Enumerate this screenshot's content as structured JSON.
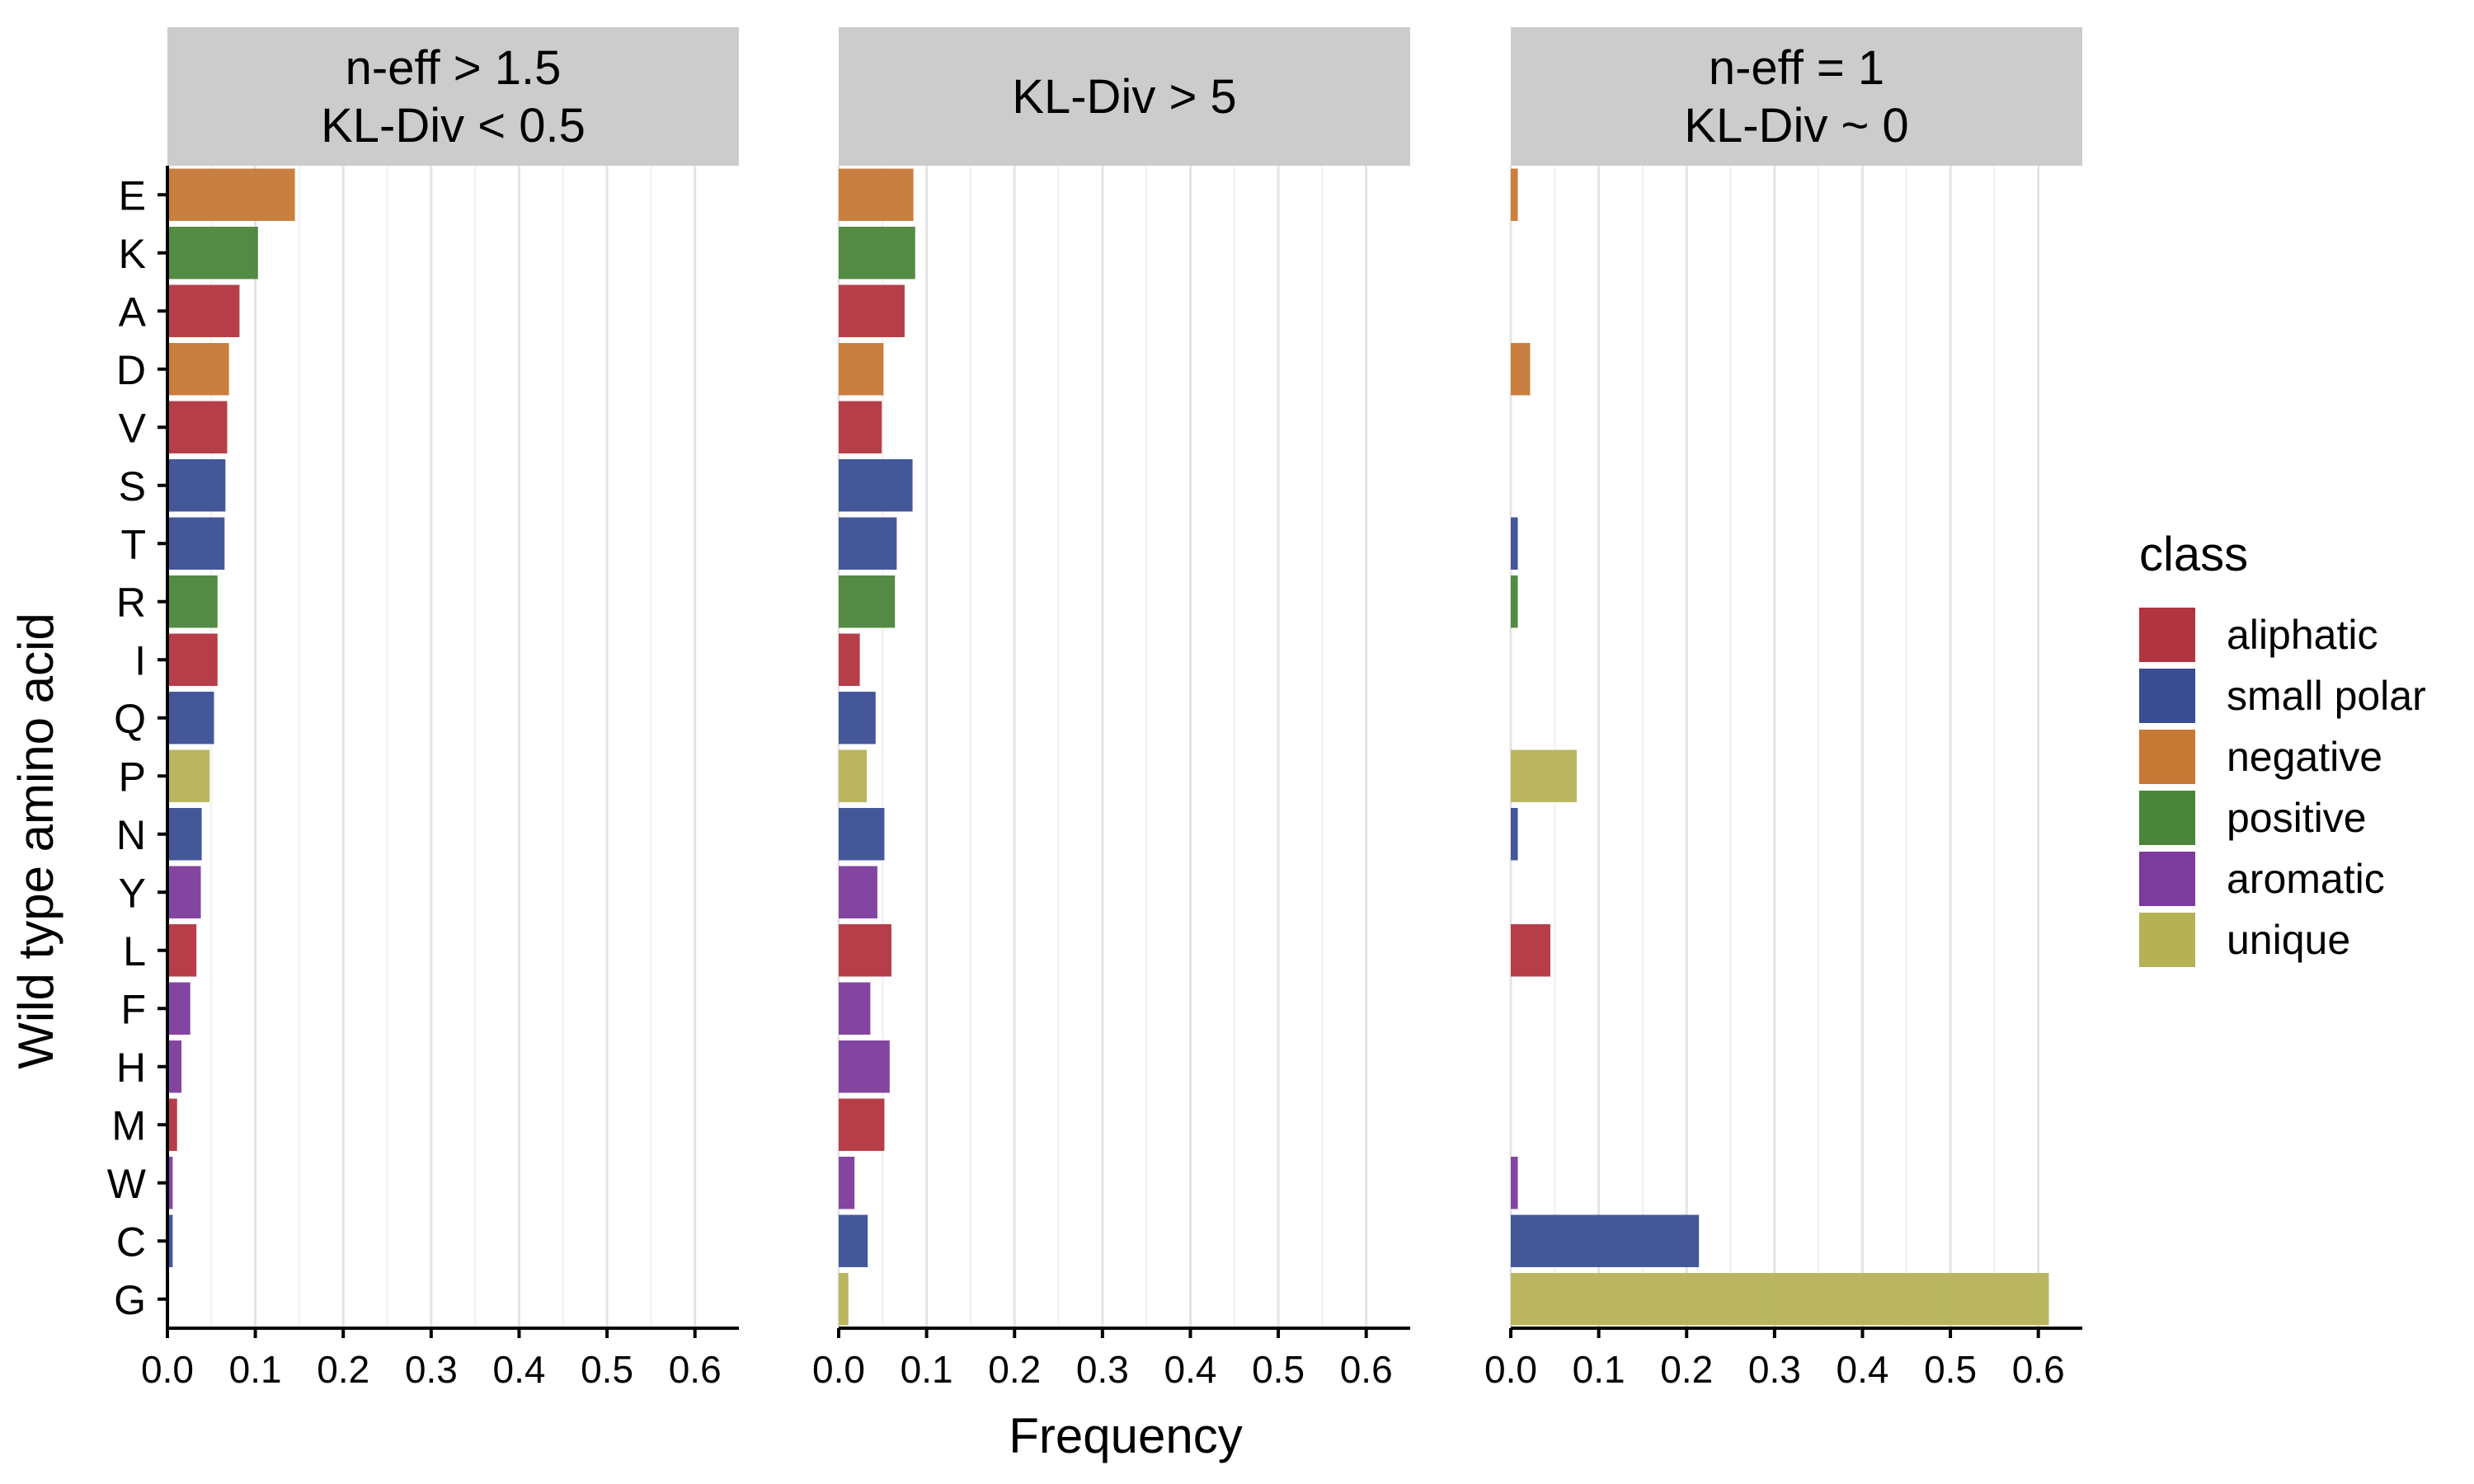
{
  "chart_data": {
    "type": "bar",
    "orientation": "horizontal",
    "facet_strip_color": "#cccccc",
    "categories": [
      "E",
      "K",
      "A",
      "D",
      "V",
      "S",
      "T",
      "R",
      "I",
      "Q",
      "P",
      "N",
      "Y",
      "L",
      "F",
      "H",
      "M",
      "W",
      "C",
      "G"
    ],
    "category_class": [
      "negative",
      "positive",
      "aliphatic",
      "negative",
      "aliphatic",
      "small polar",
      "small polar",
      "positive",
      "aliphatic",
      "small polar",
      "unique",
      "small polar",
      "aromatic",
      "aliphatic",
      "aromatic",
      "aromatic",
      "aliphatic",
      "aromatic",
      "small polar",
      "unique"
    ],
    "xlabel": "Frequency",
    "ylabel": "Wild type amino acid",
    "xlim": [
      0,
      0.65
    ],
    "xticks": [
      0.0,
      0.1,
      0.2,
      0.3,
      0.4,
      0.5,
      0.6
    ],
    "xtick_labels": [
      "0.0",
      "0.1",
      "0.2",
      "0.3",
      "0.4",
      "0.5",
      "0.6"
    ],
    "grid": true,
    "legend": {
      "title": "class",
      "position": "right",
      "items": [
        {
          "label": "aliphatic",
          "color": "#b2343e"
        },
        {
          "label": "small polar",
          "color": "#3a4e93"
        },
        {
          "label": "negative",
          "color": "#c67835"
        },
        {
          "label": "positive",
          "color": "#4a853a"
        },
        {
          "label": "aromatic",
          "color": "#7c3c9b"
        },
        {
          "label": "unique",
          "color": "#b5b256"
        }
      ]
    },
    "panels": [
      {
        "title_lines": [
          "n-eff > 1.5",
          "KL-Div < 0.5"
        ],
        "values": [
          0.145,
          0.103,
          0.082,
          0.07,
          0.068,
          0.066,
          0.065,
          0.057,
          0.057,
          0.053,
          0.048,
          0.039,
          0.038,
          0.033,
          0.026,
          0.016,
          0.011,
          0.006,
          0.006,
          0.002
        ]
      },
      {
        "title_lines": [
          "KL-Div > 5"
        ],
        "values": [
          0.085,
          0.087,
          0.075,
          0.051,
          0.049,
          0.084,
          0.066,
          0.064,
          0.024,
          0.042,
          0.032,
          0.052,
          0.044,
          0.06,
          0.036,
          0.058,
          0.052,
          0.018,
          0.033,
          0.011
        ]
      },
      {
        "title_lines": [
          "n-eff = 1",
          "KL-Div ~ 0"
        ],
        "values": [
          0.008,
          0,
          0,
          0.022,
          0,
          0,
          0.008,
          0.008,
          0,
          0,
          0.075,
          0.008,
          0,
          0.045,
          0,
          0,
          0,
          0.008,
          0.214,
          0.612
        ]
      }
    ]
  }
}
